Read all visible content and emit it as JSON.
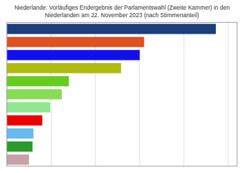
{
  "chart_data": {
    "type": "bar",
    "orientation": "horizontal",
    "title": "Niederlande: Vorläufiges Endergebnis der Parlamentswahl (Zweite Kammer) in den\nNiederlanden am 22. November 2023 (nach Stimmenanteil)",
    "categories": [
      null,
      null,
      null,
      null,
      null,
      null,
      null,
      null,
      null,
      null,
      null
    ],
    "values": [
      23.6,
      15.5,
      15.0,
      12.9,
      7.0,
      6.2,
      4.9,
      4.0,
      3.0,
      2.9,
      2.5
    ],
    "colors": [
      "#1b3f7a",
      "#e05020",
      "#1010ee",
      "#b0bb10",
      "#66cc22",
      "#88dd55",
      "#90e890",
      "#ee0000",
      "#66bbee",
      "#2a9a2a",
      "#c8a0a8"
    ],
    "xlim": [
      0,
      26
    ],
    "xticks": [
      0,
      5,
      10,
      15,
      20,
      25
    ],
    "grid": true,
    "tick_labels": false
  }
}
